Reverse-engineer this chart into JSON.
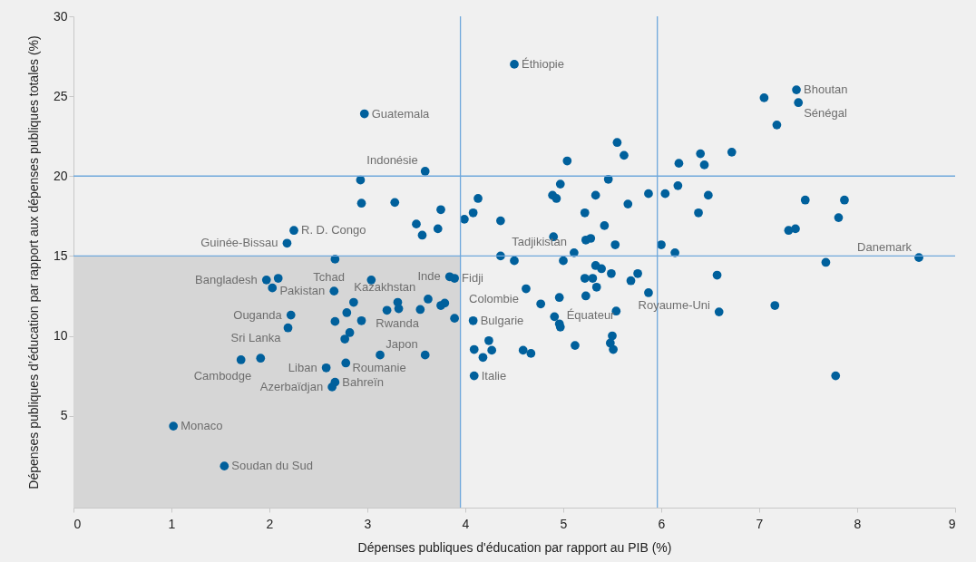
{
  "chart_data": {
    "type": "scatter",
    "xlabel": "Dépenses publiques d'éducation par rapport au PIB (%)",
    "ylabel": "Dépenses publiques d’éducation par rapport aux dépenses publiques totales (%)",
    "xlim": [
      0,
      9
    ],
    "xticks": [
      0,
      1,
      2,
      3,
      4,
      5,
      6,
      7,
      8,
      9
    ],
    "ylim": [
      -0.75,
      30
    ],
    "yticks": [
      5,
      10,
      15,
      20,
      25,
      30
    ],
    "grid": false,
    "marker": "circle",
    "series": [
      {
        "color": "#00609c",
        "x": [
          2.97,
          3.59,
          2.93,
          2.94,
          3.28,
          3.5,
          3.56,
          3.72,
          3.75,
          3.99,
          4.08,
          4.13,
          2.25,
          2.18,
          2.67,
          4.5,
          7.38,
          7.4,
          7.05,
          7.18,
          5.55,
          5.62,
          5.04,
          6.18,
          6.4,
          6.44,
          6.72,
          5.46,
          4.97,
          4.89,
          4.93,
          5.33,
          4.36,
          5.22,
          5.66,
          5.87,
          6.04,
          6.17,
          6.48,
          6.38,
          5.42,
          4.9,
          5.23,
          5.28,
          5.53,
          7.47,
          7.87,
          7.81,
          7.3,
          7.37,
          6.0,
          6.14,
          5.11,
          4.36,
          4.5,
          5.0,
          8.63,
          7.68,
          5.33,
          5.39,
          5.49,
          5.76,
          5.22,
          5.3,
          5.34,
          5.69,
          5.87,
          6.57,
          4.62,
          4.96,
          4.77,
          5.23,
          5.54,
          6.59,
          7.16,
          4.08,
          4.91,
          4.96,
          4.97,
          4.24,
          4.09,
          4.27,
          4.18,
          4.59,
          4.67,
          5.12,
          5.5,
          5.48,
          5.51,
          4.09,
          7.78,
          1.97,
          2.09,
          2.03,
          3.04,
          2.66,
          2.86,
          2.79,
          2.67,
          2.22,
          2.19,
          2.94,
          2.82,
          2.77,
          3.2,
          3.31,
          3.32,
          3.54,
          3.62,
          3.75,
          3.79,
          3.89,
          3.84,
          3.89,
          1.71,
          1.91,
          2.58,
          2.78,
          3.13,
          3.59,
          2.67,
          2.64,
          1.02,
          1.54
        ],
        "values": [
          23.9,
          20.3,
          19.75,
          18.3,
          18.35,
          17.0,
          16.3,
          16.7,
          17.9,
          17.3,
          17.7,
          18.6,
          16.6,
          15.8,
          14.8,
          27.0,
          25.4,
          24.6,
          24.9,
          23.2,
          22.1,
          21.3,
          20.95,
          20.8,
          21.4,
          20.7,
          21.5,
          19.8,
          19.5,
          18.8,
          18.6,
          18.8,
          17.2,
          17.7,
          18.25,
          18.9,
          18.9,
          19.4,
          18.8,
          17.7,
          16.9,
          16.2,
          16.0,
          16.1,
          15.7,
          18.5,
          18.5,
          17.4,
          16.6,
          16.7,
          15.7,
          15.2,
          15.2,
          15.0,
          14.7,
          14.7,
          14.9,
          14.6,
          14.4,
          14.2,
          13.9,
          13.9,
          13.6,
          13.6,
          13.05,
          13.45,
          12.7,
          13.8,
          12.95,
          12.4,
          12.0,
          12.5,
          11.55,
          11.5,
          11.9,
          10.95,
          11.2,
          10.75,
          10.55,
          9.7,
          9.15,
          9.1,
          8.65,
          9.1,
          8.9,
          9.4,
          10.0,
          9.55,
          9.15,
          7.5,
          7.5,
          13.5,
          13.6,
          13.0,
          13.5,
          12.8,
          12.1,
          11.45,
          10.9,
          11.3,
          10.5,
          10.95,
          10.2,
          9.8,
          11.6,
          12.1,
          11.7,
          11.65,
          12.3,
          11.9,
          12.05,
          11.1,
          13.7,
          13.6,
          8.5,
          8.6,
          8.0,
          8.3,
          8.8,
          8.8,
          7.1,
          6.8,
          4.35,
          1.85
        ]
      }
    ],
    "ref_lines": [
      {
        "axis": "x",
        "value": 3.95,
        "color": "#6fa8dc"
      },
      {
        "axis": "x",
        "value": 5.96,
        "color": "#6fa8dc"
      },
      {
        "axis": "y",
        "value": 15,
        "color": "#6fa8dc"
      },
      {
        "axis": "y",
        "value": 20,
        "color": "#6fa8dc"
      }
    ],
    "bands": [
      {
        "axis": "x",
        "from": 0,
        "to": 3.95,
        "color": "#d6d6d6"
      }
    ],
    "annotations": [
      {
        "text": "Éthiopie",
        "x": 4.5,
        "y": 27.0
      },
      {
        "text": "Bhoutan",
        "x": 7.38,
        "y": 25.4
      },
      {
        "text": "Sénégal",
        "x": 7.4,
        "y": 24.6
      },
      {
        "text": "Guatemala",
        "x": 2.97,
        "y": 23.9
      },
      {
        "text": "Indonésie",
        "x": 3.59,
        "y": 20.3
      },
      {
        "text": "R. D. Congo",
        "x": 2.25,
        "y": 16.6
      },
      {
        "text": "Guinée-Bissau",
        "x": 2.18,
        "y": 15.8
      },
      {
        "text": "Danemark",
        "x": 8.63,
        "y": 14.9
      },
      {
        "text": "Tadjikistan",
        "x": 5.11,
        "y": 15.2
      },
      {
        "text": "Bangladesh",
        "x": 1.97,
        "y": 13.5
      },
      {
        "text": "Pakistan",
        "x": 2.66,
        "y": 12.8
      },
      {
        "text": "Inde",
        "x": 3.84,
        "y": 13.7
      },
      {
        "text": "Fidji",
        "x": 3.89,
        "y": 13.6
      },
      {
        "text": "Rwanda",
        "x": 3.62,
        "y": 12.3
      },
      {
        "text": "Colombie",
        "x": 4.62,
        "y": 12.95
      },
      {
        "text": "Équateur",
        "x": 4.96,
        "y": 12.4
      },
      {
        "text": "Royaume-Uni",
        "x": 5.69,
        "y": 13.45
      },
      {
        "text": "Kazakhstan",
        "x": 2.79,
        "y": 11.45
      },
      {
        "text": "Tchad",
        "x": 2.86,
        "y": 12.1
      },
      {
        "text": "Ouganda",
        "x": 2.22,
        "y": 11.3
      },
      {
        "text": "Sri Lanka",
        "x": 2.19,
        "y": 10.5
      },
      {
        "text": "Bulgarie",
        "x": 4.08,
        "y": 10.95
      },
      {
        "text": "Cambodge",
        "x": 1.91,
        "y": 8.6
      },
      {
        "text": "Liban",
        "x": 2.58,
        "y": 8.0
      },
      {
        "text": "Roumanie",
        "x": 3.13,
        "y": 8.8
      },
      {
        "text": "Japon",
        "x": 3.59,
        "y": 8.8
      },
      {
        "text": "Italie",
        "x": 4.09,
        "y": 7.5
      },
      {
        "text": "Bahreïn",
        "x": 2.67,
        "y": 7.1
      },
      {
        "text": "Azerbaïdjan",
        "x": 2.64,
        "y": 6.8
      },
      {
        "text": "Monaco",
        "x": 1.02,
        "y": 4.35
      },
      {
        "text": "Soudan du Sud",
        "x": 1.54,
        "y": 1.85
      }
    ]
  }
}
